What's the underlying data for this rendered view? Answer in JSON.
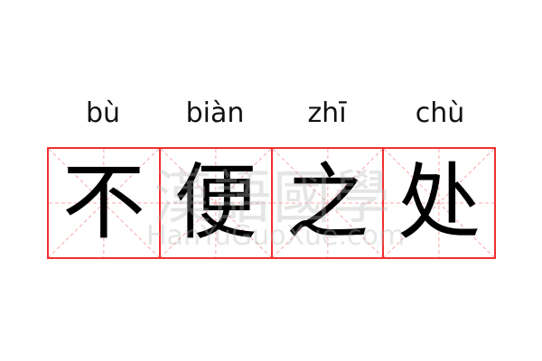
{
  "entries": [
    {
      "pinyin": "bù",
      "char": "不"
    },
    {
      "pinyin": "biàn",
      "char": "便"
    },
    {
      "pinyin": "zhī",
      "char": "之"
    },
    {
      "pinyin": "chù",
      "char": "处"
    }
  ],
  "watermark": {
    "chinese": "漢語國學",
    "latin": "HanYuGuoXue.com"
  },
  "colors": {
    "border": "#f03030",
    "guide": "#f8a8a8",
    "text": "#000000"
  }
}
